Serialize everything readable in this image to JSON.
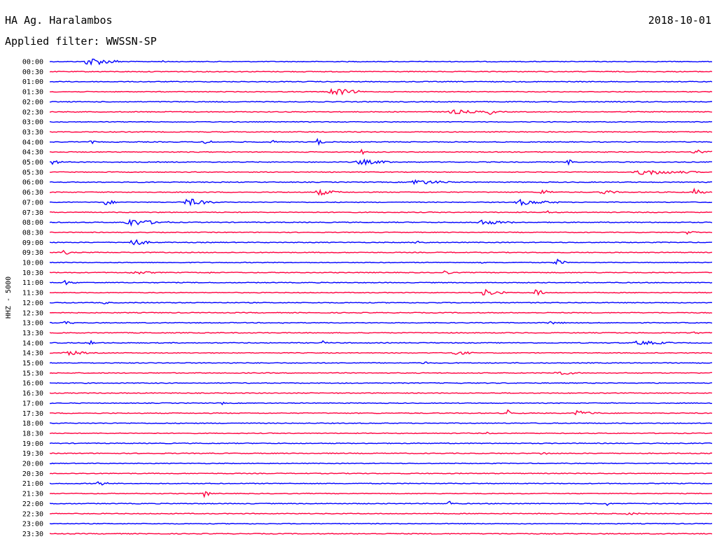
{
  "header": {
    "station": "HA Ag. Haralambos",
    "date": "2018-10-01",
    "filter_label": "Applied filter:",
    "filter_value": "WWSSN-SP"
  },
  "chart_data": {
    "type": "line",
    "title": "HA Ag. Haralambos",
    "ylabel": "HHZ - 5000",
    "colors": [
      "#0000ff",
      "#ff0040"
    ],
    "rows": [
      "00:00",
      "00:30",
      "01:00",
      "01:30",
      "02:00",
      "02:30",
      "03:00",
      "03:30",
      "04:00",
      "04:30",
      "05:00",
      "05:30",
      "06:00",
      "06:30",
      "07:00",
      "07:30",
      "08:00",
      "08:30",
      "09:00",
      "09:30",
      "10:00",
      "10:30",
      "11:00",
      "11:30",
      "12:00",
      "12:30",
      "13:00",
      "13:30",
      "14:00",
      "14:30",
      "15:00",
      "15:30",
      "16:00",
      "16:30",
      "17:00",
      "17:30",
      "18:00",
      "18:30",
      "19:00",
      "19:30",
      "20:00",
      "20:30",
      "21:00",
      "21:30",
      "22:00",
      "22:30",
      "23:00",
      "23:30"
    ],
    "row_minutes": 30,
    "events": [
      {
        "row": 0,
        "t": 0.05,
        "dur": 0.06,
        "amp": 1.0
      },
      {
        "row": 0,
        "t": 0.17,
        "dur": 0.005,
        "amp": 0.3
      },
      {
        "row": 3,
        "t": 0.42,
        "dur": 0.05,
        "amp": 1.0
      },
      {
        "row": 5,
        "t": 0.6,
        "dur": 0.06,
        "amp": 0.5
      },
      {
        "row": 5,
        "t": 0.66,
        "dur": 0.02,
        "amp": 0.7
      },
      {
        "row": 8,
        "t": 0.06,
        "dur": 0.01,
        "amp": 0.5
      },
      {
        "row": 8,
        "t": 0.23,
        "dur": 0.02,
        "amp": 0.6
      },
      {
        "row": 8,
        "t": 0.33,
        "dur": 0.015,
        "amp": 0.6
      },
      {
        "row": 8,
        "t": 0.4,
        "dur": 0.015,
        "amp": 0.9
      },
      {
        "row": 9,
        "t": 0.47,
        "dur": 0.01,
        "amp": 0.8
      },
      {
        "row": 9,
        "t": 0.97,
        "dur": 0.03,
        "amp": 0.7
      },
      {
        "row": 10,
        "t": 0.0,
        "dur": 0.02,
        "amp": 0.6
      },
      {
        "row": 10,
        "t": 0.46,
        "dur": 0.06,
        "amp": 0.6
      },
      {
        "row": 10,
        "t": 0.78,
        "dur": 0.02,
        "amp": 0.6
      },
      {
        "row": 11,
        "t": 0.88,
        "dur": 0.1,
        "amp": 0.6
      },
      {
        "row": 12,
        "t": 0.54,
        "dur": 0.07,
        "amp": 0.6
      },
      {
        "row": 13,
        "t": 0.4,
        "dur": 0.04,
        "amp": 0.7
      },
      {
        "row": 13,
        "t": 0.74,
        "dur": 0.02,
        "amp": 0.8
      },
      {
        "row": 13,
        "t": 0.83,
        "dur": 0.03,
        "amp": 0.6
      },
      {
        "row": 13,
        "t": 0.97,
        "dur": 0.02,
        "amp": 0.8
      },
      {
        "row": 14,
        "t": 0.08,
        "dur": 0.02,
        "amp": 0.8
      },
      {
        "row": 14,
        "t": 0.2,
        "dur": 0.05,
        "amp": 0.9
      },
      {
        "row": 14,
        "t": 0.7,
        "dur": 0.07,
        "amp": 0.6
      },
      {
        "row": 15,
        "t": 0.75,
        "dur": 0.01,
        "amp": 0.5
      },
      {
        "row": 16,
        "t": 0.11,
        "dur": 0.07,
        "amp": 0.8
      },
      {
        "row": 16,
        "t": 0.64,
        "dur": 0.06,
        "amp": 0.6
      },
      {
        "row": 17,
        "t": 0.96,
        "dur": 0.02,
        "amp": 0.4
      },
      {
        "row": 18,
        "t": 0.12,
        "dur": 0.03,
        "amp": 1.0
      },
      {
        "row": 18,
        "t": 0.55,
        "dur": 0.02,
        "amp": 0.5
      },
      {
        "row": 19,
        "t": 0.02,
        "dur": 0.01,
        "amp": 1.0
      },
      {
        "row": 20,
        "t": 0.65,
        "dur": 0.005,
        "amp": 0.6
      },
      {
        "row": 20,
        "t": 0.76,
        "dur": 0.02,
        "amp": 1.0
      },
      {
        "row": 21,
        "t": 0.12,
        "dur": 0.04,
        "amp": 0.4
      },
      {
        "row": 21,
        "t": 0.24,
        "dur": 0.005,
        "amp": 0.6
      },
      {
        "row": 21,
        "t": 0.36,
        "dur": 0.005,
        "amp": 0.6
      },
      {
        "row": 21,
        "t": 0.59,
        "dur": 0.02,
        "amp": 0.6
      },
      {
        "row": 22,
        "t": 0.02,
        "dur": 0.02,
        "amp": 0.5
      },
      {
        "row": 23,
        "t": 0.65,
        "dur": 0.04,
        "amp": 0.8
      },
      {
        "row": 23,
        "t": 0.73,
        "dur": 0.02,
        "amp": 1.0
      },
      {
        "row": 24,
        "t": 0.08,
        "dur": 0.01,
        "amp": 0.4
      },
      {
        "row": 26,
        "t": 0.02,
        "dur": 0.02,
        "amp": 0.4
      },
      {
        "row": 26,
        "t": 0.35,
        "dur": 0.005,
        "amp": 0.4
      },
      {
        "row": 26,
        "t": 0.75,
        "dur": 0.03,
        "amp": 0.3
      },
      {
        "row": 27,
        "t": 0.97,
        "dur": 0.01,
        "amp": 0.5
      },
      {
        "row": 28,
        "t": 0.06,
        "dur": 0.01,
        "amp": 0.8
      },
      {
        "row": 28,
        "t": 0.41,
        "dur": 0.01,
        "amp": 0.5
      },
      {
        "row": 28,
        "t": 0.88,
        "dur": 0.06,
        "amp": 0.5
      },
      {
        "row": 29,
        "t": 0.02,
        "dur": 0.04,
        "amp": 0.6
      },
      {
        "row": 29,
        "t": 0.6,
        "dur": 0.04,
        "amp": 0.6
      },
      {
        "row": 30,
        "t": 0.27,
        "dur": 0.005,
        "amp": 0.4
      },
      {
        "row": 30,
        "t": 0.56,
        "dur": 0.01,
        "amp": 0.7
      },
      {
        "row": 31,
        "t": 0.76,
        "dur": 0.04,
        "amp": 0.5
      },
      {
        "row": 34,
        "t": 0.26,
        "dur": 0.005,
        "amp": 0.5
      },
      {
        "row": 35,
        "t": 0.69,
        "dur": 0.01,
        "amp": 0.7
      },
      {
        "row": 35,
        "t": 0.79,
        "dur": 0.04,
        "amp": 0.6
      },
      {
        "row": 37,
        "t": 0.66,
        "dur": 0.005,
        "amp": 0.4
      },
      {
        "row": 39,
        "t": 0.74,
        "dur": 0.02,
        "amp": 0.3
      },
      {
        "row": 42,
        "t": 0.07,
        "dur": 0.02,
        "amp": 0.6
      },
      {
        "row": 43,
        "t": 0.23,
        "dur": 0.015,
        "amp": 1.0
      },
      {
        "row": 44,
        "t": 0.6,
        "dur": 0.01,
        "amp": 1.0
      },
      {
        "row": 44,
        "t": 0.84,
        "dur": 0.005,
        "amp": 0.8
      },
      {
        "row": 45,
        "t": 0.87,
        "dur": 0.02,
        "amp": 0.4
      }
    ]
  }
}
